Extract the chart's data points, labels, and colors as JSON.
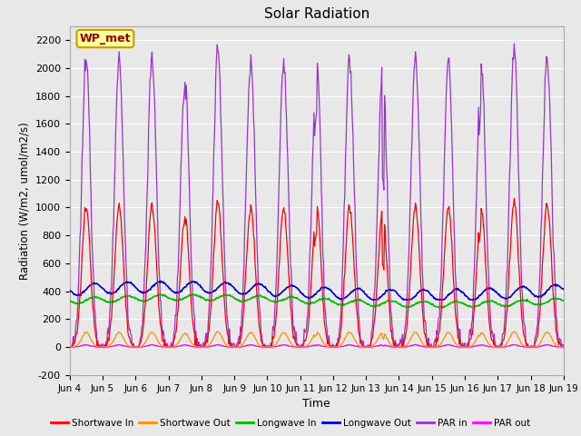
{
  "title": "Solar Radiation",
  "ylabel": "Radiation (W/m2, umol/m2/s)",
  "xlabel": "Time",
  "ylim": [
    -200,
    2300
  ],
  "yticks": [
    -200,
    0,
    200,
    400,
    600,
    800,
    1000,
    1200,
    1400,
    1600,
    1800,
    2000,
    2200
  ],
  "n_days": 15,
  "xtick_labels": [
    "Jun 4",
    "Jun 5",
    "Jun 6",
    "Jun 7",
    "Jun 8",
    "Jun 9",
    "Jun 10",
    "Jun 11",
    "Jun 12",
    "Jun 13",
    "Jun 14",
    "Jun 15",
    "Jun 16",
    "Jun 17",
    "Jun 18",
    "Jun 19"
  ],
  "figure_bg": "#e8e8e8",
  "plot_bg": "#e8e8e8",
  "grid_color": "#ffffff",
  "legend_entries": [
    "Shortwave In",
    "Shortwave Out",
    "Longwave In",
    "Longwave Out",
    "PAR in",
    "PAR out"
  ],
  "legend_colors": [
    "#ff0000",
    "#ff8c00",
    "#00bb00",
    "#0000cc",
    "#9933cc",
    "#ff00ff"
  ],
  "annotation_text": "WP_met",
  "annotation_color": "#990000",
  "annotation_bg": "#ffff99",
  "annotation_border": "#cc9900"
}
